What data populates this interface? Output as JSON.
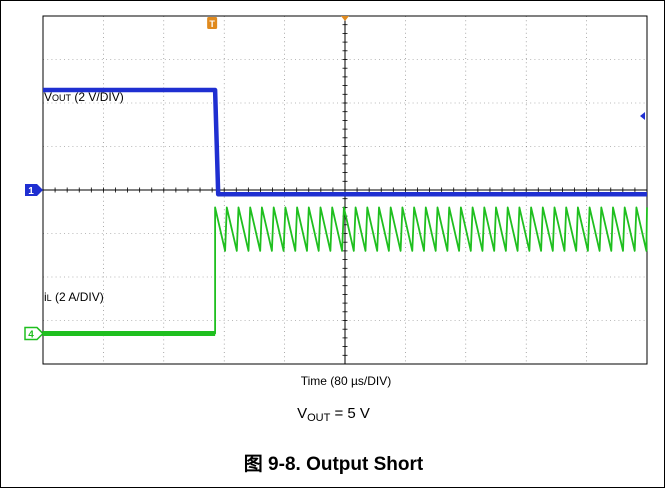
{
  "chart_data": {
    "type": "line",
    "title": "",
    "xlabel": "Time (80 µs/DIV)",
    "ylabel": "",
    "x_unit": "µs",
    "xlim": [
      0,
      800
    ],
    "x_divisions": 10,
    "y_divisions": 8,
    "grid": true,
    "series": [
      {
        "name": "VOUT",
        "label": {
          "main": "V",
          "sub": "OUT",
          "rest": " (2 V/DIV)"
        },
        "scale": "2 V/DIV",
        "channel": "1",
        "color": "#1f2fd1",
        "offset_div": 0,
        "points": [
          [
            0,
            2.3
          ],
          [
            228,
            2.3
          ],
          [
            232,
            -0.1
          ],
          [
            800,
            -0.1
          ]
        ]
      },
      {
        "name": "iL",
        "label": {
          "main": "i",
          "sub": "L",
          "rest": " (2 A/DIV)"
        },
        "scale": "2 A/DIV",
        "channel": "4",
        "color": "#1fbf1f",
        "offset_div": -3.3,
        "pre_short_div": 0,
        "short_time": 228,
        "ripple_period": 15.5,
        "ripple_peak_div": 2.9,
        "ripple_valley_div": 1.9
      }
    ]
  },
  "condition": {
    "main": "V",
    "sub": "OUT",
    "rest": " = 5 V"
  },
  "caption": "图 9-8. Output Short",
  "colors": {
    "grid": "#000000",
    "vout": "#1f2fd1",
    "il": "#1fbf1f",
    "marker": "#e08a1e"
  }
}
